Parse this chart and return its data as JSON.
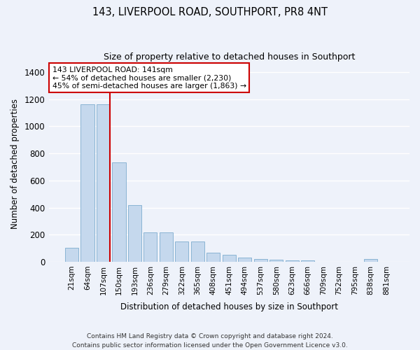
{
  "title": "143, LIVERPOOL ROAD, SOUTHPORT, PR8 4NT",
  "subtitle": "Size of property relative to detached houses in Southport",
  "xlabel": "Distribution of detached houses by size in Southport",
  "ylabel": "Number of detached properties",
  "categories": [
    "21sqm",
    "64sqm",
    "107sqm",
    "150sqm",
    "193sqm",
    "236sqm",
    "279sqm",
    "322sqm",
    "365sqm",
    "408sqm",
    "451sqm",
    "494sqm",
    "537sqm",
    "580sqm",
    "623sqm",
    "666sqm",
    "709sqm",
    "752sqm",
    "795sqm",
    "838sqm",
    "881sqm"
  ],
  "values": [
    105,
    1160,
    1160,
    735,
    420,
    215,
    215,
    148,
    148,
    68,
    50,
    32,
    22,
    15,
    12,
    12,
    0,
    0,
    0,
    18,
    0
  ],
  "bar_color": "#c5d8ed",
  "bar_edge_color": "#8ab4d4",
  "marker_line_index": 2,
  "marker_label": "143 LIVERPOOL ROAD: 141sqm",
  "annotation_line1": "← 54% of detached houses are smaller (2,230)",
  "annotation_line2": "45% of semi-detached houses are larger (1,863) →",
  "annotation_box_color": "#ffffff",
  "annotation_box_edge": "#cc0000",
  "marker_line_color": "#cc0000",
  "ylim": [
    0,
    1450
  ],
  "background_color": "#eef2fa",
  "grid_color": "#ffffff",
  "footer": "Contains HM Land Registry data © Crown copyright and database right 2024.\nContains public sector information licensed under the Open Government Licence v3.0."
}
